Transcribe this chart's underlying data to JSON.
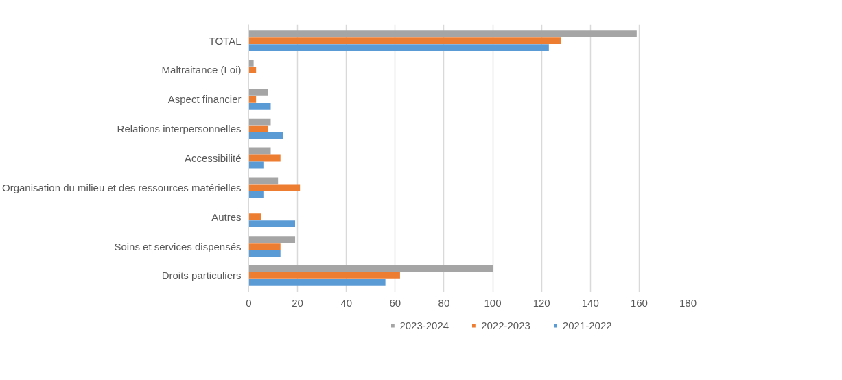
{
  "chart_data": {
    "type": "bar",
    "orientation": "horizontal",
    "categories": [
      "TOTAL",
      "Maltraitance (Loi)",
      "Aspect financier",
      "Relations interpersonnelles",
      "Accessibilité",
      "Organisation du milieu et des ressources matérielles",
      "Autres",
      "Soins et services dispensés",
      "Droits particuliers"
    ],
    "series": [
      {
        "name": "2023-2024",
        "color": "#a5a5a5",
        "values": [
          159,
          2,
          8,
          9,
          9,
          12,
          0,
          19,
          100
        ]
      },
      {
        "name": "2022-2023",
        "color": "#ed7d31",
        "values": [
          128,
          3,
          3,
          8,
          13,
          21,
          5,
          13,
          62
        ]
      },
      {
        "name": "2021-2022",
        "color": "#5b9bd5",
        "values": [
          123,
          0,
          9,
          14,
          6,
          6,
          19,
          13,
          56
        ]
      }
    ],
    "xlim": [
      0,
      180
    ],
    "xticks": [
      0,
      20,
      40,
      60,
      80,
      100,
      120,
      140,
      160,
      180
    ],
    "grid": "x",
    "legend": "bottom"
  }
}
